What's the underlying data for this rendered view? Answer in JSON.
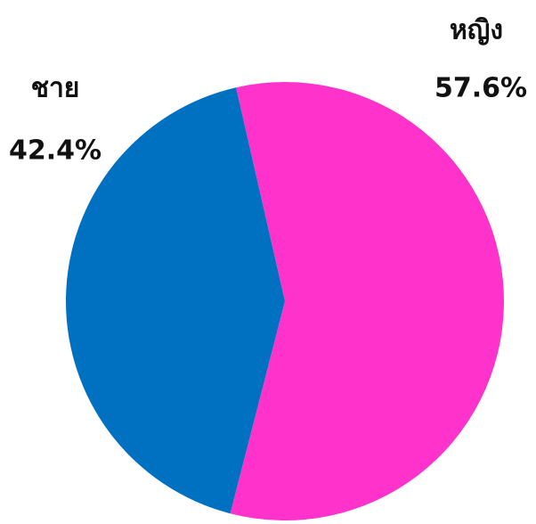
{
  "chart_data": {
    "type": "pie",
    "categories": [
      "หญิง",
      "ชาย"
    ],
    "values": [
      57.6,
      42.4
    ],
    "value_labels": [
      "57.6%",
      "42.4%"
    ],
    "colors": [
      "#ff33cc",
      "#0070c0"
    ]
  }
}
